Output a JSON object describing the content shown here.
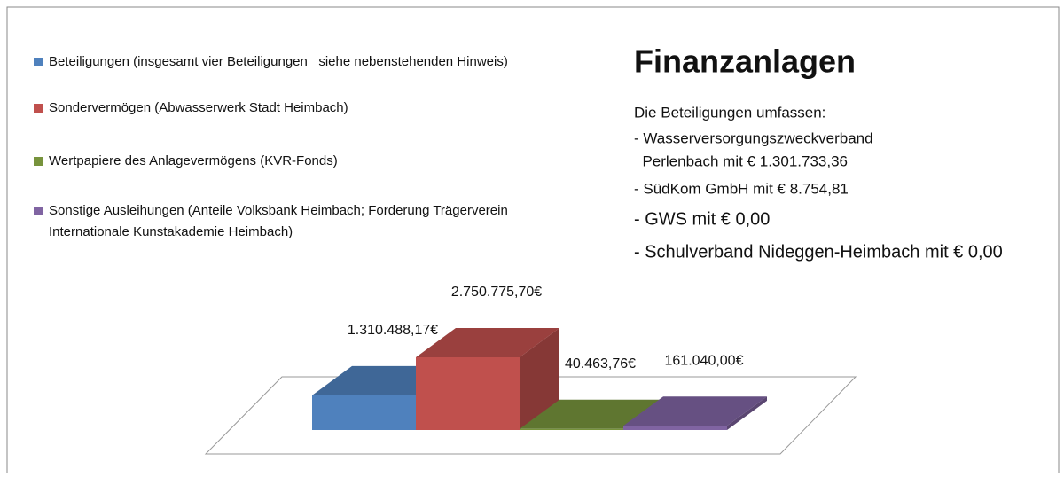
{
  "chart_data": {
    "type": "bar3d",
    "title": "Finanzanlagen",
    "annotation": [
      "Die Beteiligungen umfassen:",
      "- Wasserversorgungszweckverband",
      "  Perlenbach mit € 1.301.733,36",
      "- SüdKom GmbH mit € 8.754,81",
      "- GWS mit € 0,00",
      "- Schulverband Nideggen-Heimbach mit € 0,00"
    ],
    "series": [
      {
        "name": "Beteiligungen (insgesamt vier Beteiligungen   siehe nebenstehenden Hinweis)",
        "color": "#4f81bd",
        "values": [
          1310488.17
        ],
        "value_labels": [
          "1.310.488,17€"
        ]
      },
      {
        "name": "Sondervermögen (Abwasserwerk Stadt Heimbach)",
        "color": "#c0504d",
        "values": [
          2750775.7
        ],
        "value_labels": [
          "2.750.775,70€"
        ]
      },
      {
        "name": "Wertpapiere des Anlagevermögens (KVR-Fonds)",
        "color": "#77933c",
        "values": [
          40463.76
        ],
        "value_labels": [
          "40.463,76€"
        ]
      },
      {
        "name": "Sonstige Ausleihungen (Anteile Volksbank Heimbach; Forderung Trägerverein Internationale Kunstakademie Heimbach)",
        "color": "#8064a2",
        "values": [
          161040.0
        ],
        "value_labels": [
          "161.040,00€"
        ]
      }
    ]
  }
}
